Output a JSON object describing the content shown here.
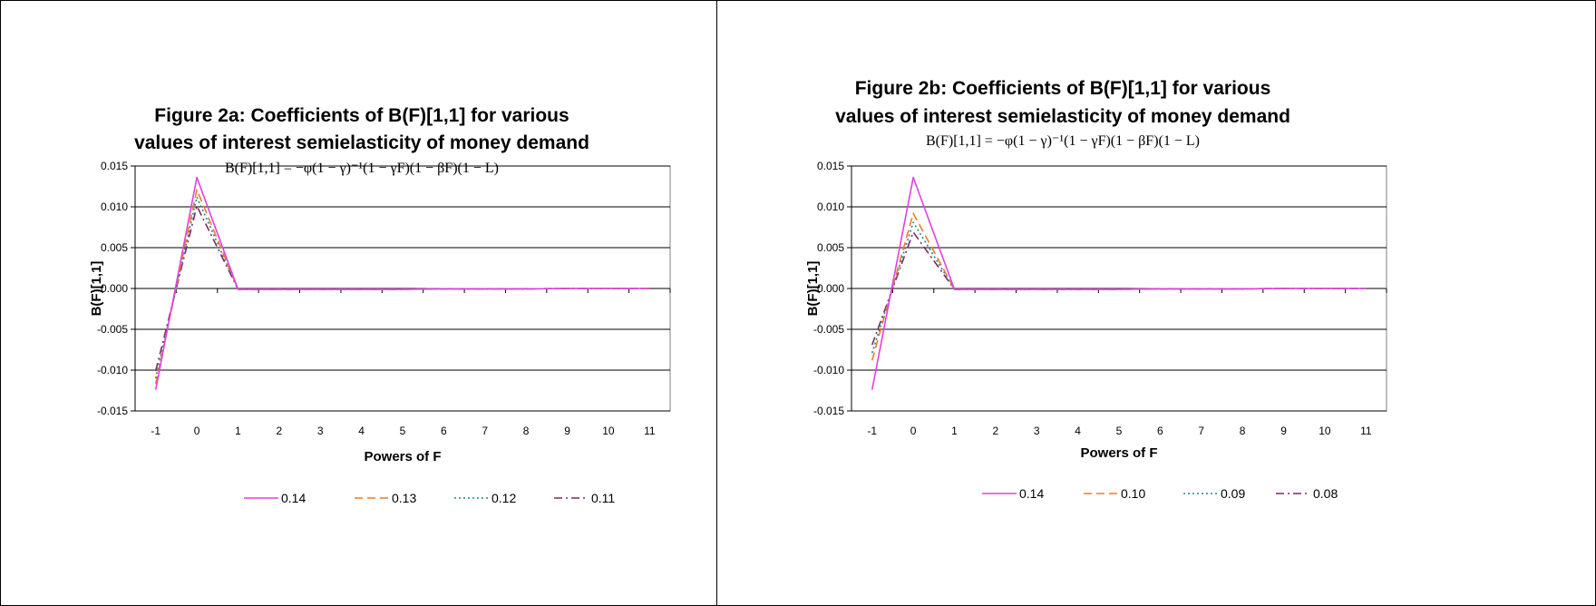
{
  "charts": [
    {
      "title_line1": "Figure 2a: Coefficients of B(F)[1,1] for various",
      "title_line2": "values of interest semielasticity of money demand",
      "formula": "B(F)[1,1] = −φ(1 − γ)⁻¹(1 − γF)(1 − βF)(1 − L)",
      "xlabel": "Powers of F",
      "ylabel": "B(F)[1,1]"
    },
    {
      "title_line1": "Figure 2b: Coefficients of B(F)[1,1] for various",
      "title_line2": "values of interest semielasticity of money demand",
      "formula": "B(F)[1,1] = −φ(1 − γ)⁻¹(1 − γF)(1 − βF)(1 − L)",
      "xlabel": "Powers of F",
      "ylabel": "B(F)[1,1]"
    }
  ],
  "chart_data": [
    {
      "type": "line",
      "title": "Figure 2a: Coefficients of B(F)[1,1] for various values of interest semielasticity of money demand",
      "subtitle": "B(F)[1,1] = −φ(1 − γ)⁻¹(1 − γF)(1 − βF)(1 − L)",
      "xlabel": "Powers of F",
      "ylabel": "B(F)[1,1]",
      "x": [
        "-1",
        "0",
        "1",
        "2",
        "3",
        "4",
        "5",
        "6",
        "7",
        "8",
        "9",
        "10",
        "11"
      ],
      "ylim": [
        -0.015,
        0.015
      ],
      "yticks": [
        "0.015",
        "0.010",
        "0.005",
        "0.000",
        "-0.005",
        "-0.010",
        "-0.015"
      ],
      "grid": true,
      "legend_position": "bottom",
      "series": [
        {
          "name": "0.14",
          "color": "#e040e0",
          "dash": "solid",
          "values": [
            -0.0124,
            0.0136,
            -0.0001,
            -0.0001,
            -0.0001,
            -0.0001,
            -0.0001,
            -5e-05,
            -5e-05,
            -5e-05,
            0,
            0,
            0
          ]
        },
        {
          "name": "0.13",
          "color": "#f07a28",
          "dash": "dash",
          "values": [
            -0.0117,
            0.0121,
            -0.0001,
            -0.0001,
            -0.0001,
            -0.0001,
            -0.0001,
            -5e-05,
            -5e-05,
            -5e-05,
            0,
            0,
            0
          ]
        },
        {
          "name": "0.12",
          "color": "#1a8a8a",
          "dash": "dot",
          "values": [
            -0.011,
            0.0112,
            -0.0001,
            -0.0001,
            -0.0001,
            -0.0001,
            -0.0001,
            -5e-05,
            -5e-05,
            -5e-05,
            0,
            0,
            0
          ]
        },
        {
          "name": "0.11",
          "color": "#7a2a6a",
          "dash": "dashdot",
          "values": [
            -0.0101,
            0.0101,
            -0.0001,
            -0.0001,
            -0.0001,
            -0.0001,
            -0.0001,
            -5e-05,
            -5e-05,
            -5e-05,
            0,
            0,
            0
          ]
        }
      ]
    },
    {
      "type": "line",
      "title": "Figure 2b: Coefficients of B(F)[1,1] for various values of interest semielasticity of money demand",
      "subtitle": "B(F)[1,1] = −φ(1 − γ)⁻¹(1 − γF)(1 − βF)(1 − L)",
      "xlabel": "Powers of F",
      "ylabel": "B(F)[1,1]",
      "x": [
        "-1",
        "0",
        "1",
        "2",
        "3",
        "4",
        "5",
        "6",
        "7",
        "8",
        "9",
        "10",
        "11"
      ],
      "ylim": [
        -0.015,
        0.015
      ],
      "yticks": [
        "0.015",
        "0.010",
        "0.005",
        "0.000",
        "-0.005",
        "-0.010",
        "-0.015"
      ],
      "grid": true,
      "legend_position": "bottom",
      "series": [
        {
          "name": "0.14",
          "color": "#e040e0",
          "dash": "solid",
          "values": [
            -0.0124,
            0.0136,
            -0.0001,
            -0.0001,
            -0.0001,
            -0.0001,
            -0.0001,
            -5e-05,
            -5e-05,
            -5e-05,
            0,
            0,
            0
          ]
        },
        {
          "name": "0.10",
          "color": "#f07a28",
          "dash": "dash",
          "values": [
            -0.0088,
            0.0092,
            -0.0001,
            -0.0001,
            -0.0001,
            -0.0001,
            -0.0001,
            -5e-05,
            -5e-05,
            -5e-05,
            0,
            0,
            0
          ]
        },
        {
          "name": "0.09",
          "color": "#1a8a8a",
          "dash": "dot",
          "values": [
            -0.0079,
            0.0081,
            -0.0001,
            -0.0001,
            -0.0001,
            -0.0001,
            -0.0001,
            -5e-05,
            -5e-05,
            -5e-05,
            0,
            0,
            0
          ]
        },
        {
          "name": "0.08",
          "color": "#7a2a6a",
          "dash": "dashdot",
          "values": [
            -0.0069,
            0.0069,
            -0.0001,
            -0.0001,
            -0.0001,
            -0.0001,
            -0.0001,
            -5e-05,
            -5e-05,
            -5e-05,
            0,
            0,
            0
          ]
        }
      ]
    }
  ]
}
